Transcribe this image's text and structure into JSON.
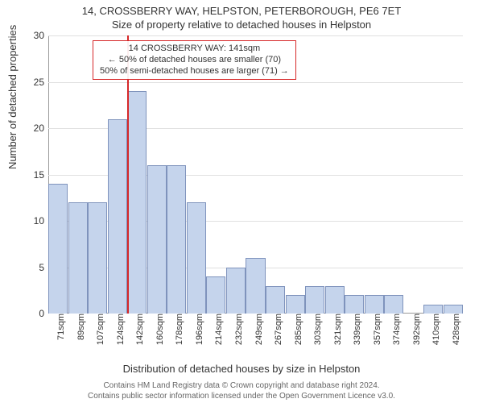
{
  "title": "14, CROSSBERRY WAY, HELPSTON, PETERBOROUGH, PE6 7ET",
  "subtitle": "Size of property relative to detached houses in Helpston",
  "ylabel": "Number of detached properties",
  "xlabel": "Distribution of detached houses by size in Helpston",
  "chart": {
    "type": "histogram",
    "bar_fill": "#c5d4ec",
    "bar_stroke": "#7f93bc",
    "background_color": "#ffffff",
    "grid_color": "#e0e0e0",
    "marker_color": "#d62728",
    "ylim": [
      0,
      30
    ],
    "ytick_step": 5,
    "yticks": [
      0,
      5,
      10,
      15,
      20,
      25,
      30
    ],
    "xticks": [
      "71sqm",
      "89sqm",
      "107sqm",
      "124sqm",
      "142sqm",
      "160sqm",
      "178sqm",
      "196sqm",
      "214sqm",
      "232sqm",
      "249sqm",
      "267sqm",
      "285sqm",
      "303sqm",
      "321sqm",
      "339sqm",
      "357sqm",
      "374sqm",
      "392sqm",
      "410sqm",
      "428sqm"
    ],
    "values": [
      14,
      12,
      12,
      21,
      24,
      16,
      16,
      12,
      4,
      5,
      6,
      3,
      2,
      3,
      3,
      2,
      2,
      2,
      0,
      1,
      1
    ],
    "marker_bin_index": 4,
    "marker_value_sqm": 141
  },
  "annotation": {
    "line1": "14 CROSSBERRY WAY: 141sqm",
    "line2": "← 50% of detached houses are smaller (70)",
    "line3": "50% of semi-detached houses are larger (71) →"
  },
  "footer": {
    "line1": "Contains HM Land Registry data © Crown copyright and database right 2024.",
    "line2": "Contains public sector information licensed under the Open Government Licence v3.0."
  }
}
